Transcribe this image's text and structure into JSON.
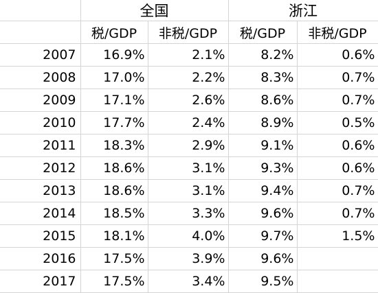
{
  "groups": [
    "全国",
    "浙江"
  ],
  "subheaders": [
    "税/GDP",
    "非税/GDP",
    "税/GDP",
    "非税/GDP"
  ],
  "rows": [
    {
      "year": "2007",
      "cells": [
        "16.9%",
        "2.1%",
        "8.2%",
        "0.6%"
      ]
    },
    {
      "year": "2008",
      "cells": [
        "17.0%",
        "2.2%",
        "8.3%",
        "0.7%"
      ]
    },
    {
      "year": "2009",
      "cells": [
        "17.1%",
        "2.6%",
        "8.6%",
        "0.7%"
      ]
    },
    {
      "year": "2010",
      "cells": [
        "17.7%",
        "2.4%",
        "8.9%",
        "0.5%"
      ]
    },
    {
      "year": "2011",
      "cells": [
        "18.3%",
        "2.9%",
        "9.1%",
        "0.6%"
      ]
    },
    {
      "year": "2012",
      "cells": [
        "18.6%",
        "3.1%",
        "9.3%",
        "0.6%"
      ]
    },
    {
      "year": "2013",
      "cells": [
        "18.6%",
        "3.1%",
        "9.4%",
        "0.7%"
      ]
    },
    {
      "year": "2014",
      "cells": [
        "18.5%",
        "3.3%",
        "9.6%",
        "0.7%"
      ]
    },
    {
      "year": "2015",
      "cells": [
        "18.1%",
        "4.0%",
        "9.7%",
        "1.5%"
      ]
    },
    {
      "year": "2016",
      "cells": [
        "17.5%",
        "3.9%",
        "9.6%",
        ""
      ]
    },
    {
      "year": "2017",
      "cells": [
        "17.5%",
        "3.4%",
        "9.5%",
        ""
      ]
    }
  ]
}
